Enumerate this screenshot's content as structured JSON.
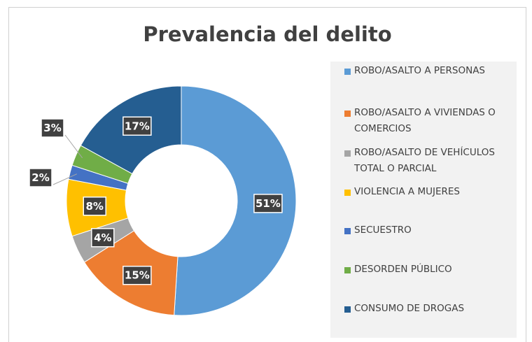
{
  "chart_data": {
    "type": "donut",
    "title": "Prevalencia del delito",
    "categories": [
      "ROBO/ASALTO A PERSONAS",
      "ROBO/ASALTO A VIVIENDAS O COMERCIOS",
      "ROBO/ASALTO DE VEHÍCULOS TOTAL O PARCIAL",
      "VIOLENCIA A MUJERES",
      "SECUESTRO",
      "DESORDEN PÚBLICO",
      "CONSUMO DE DROGAS"
    ],
    "values": [
      51,
      15,
      4,
      8,
      2,
      3,
      17
    ],
    "value_labels": [
      "51%",
      "15%",
      "4%",
      "8%",
      "2%",
      "3%",
      "17%"
    ],
    "colors": [
      "#5b9bd5",
      "#ed7d31",
      "#a5a5a5",
      "#ffc000",
      "#4472c4",
      "#70ad47",
      "#255e91"
    ],
    "legend": "right"
  }
}
